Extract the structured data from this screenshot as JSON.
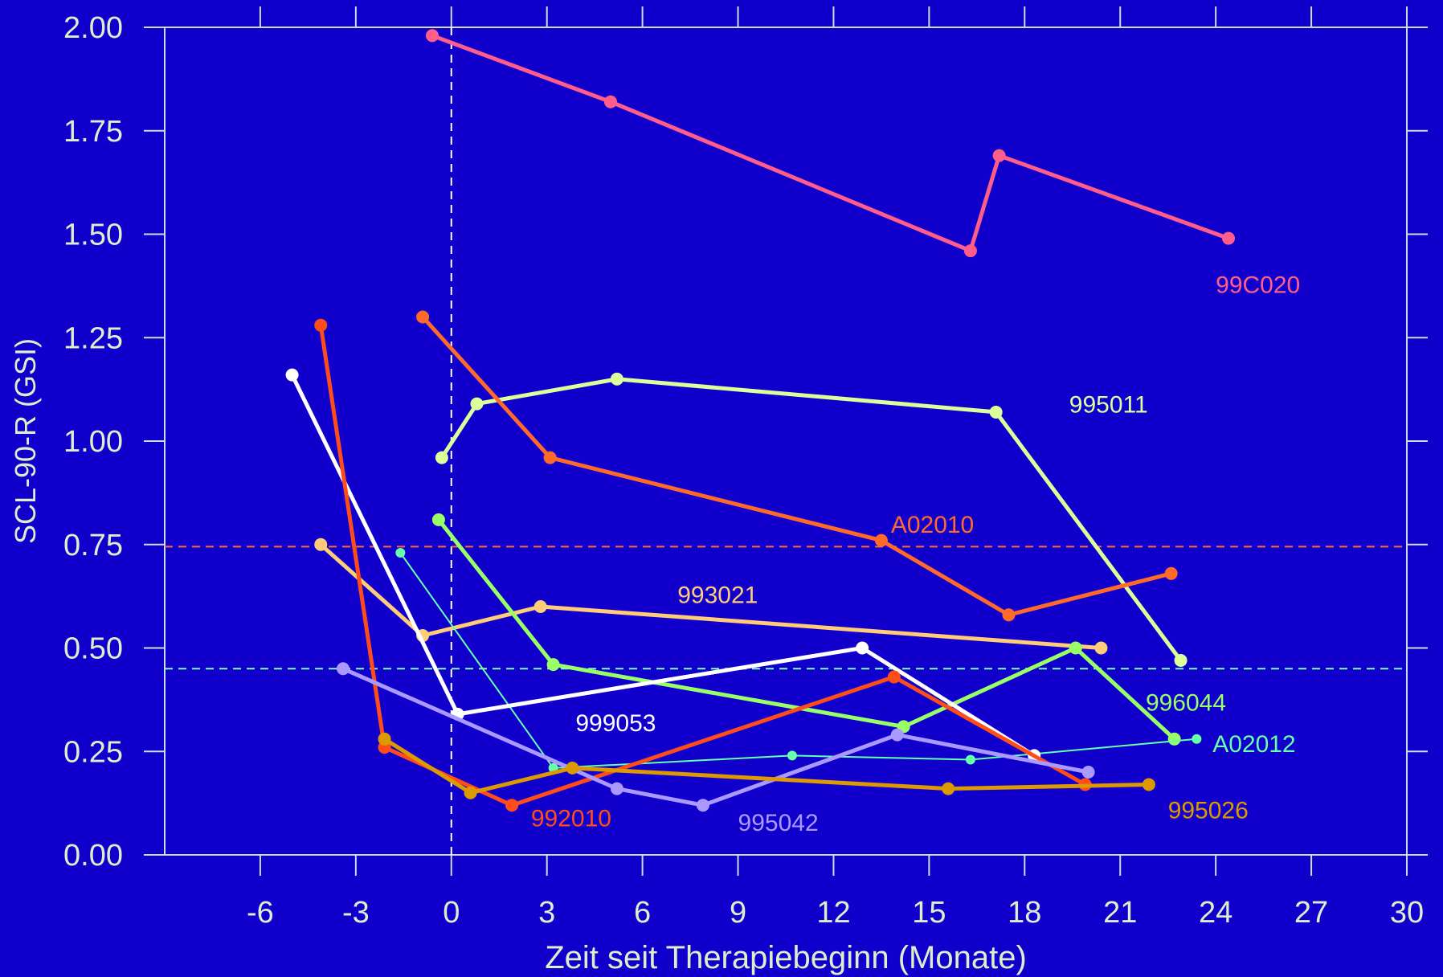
{
  "chart_data": {
    "type": "line",
    "xlabel": "Zeit seit Therapiebeginn (Monate)",
    "ylabel": "SCL-90-R (GSI)",
    "xlim": [
      -9,
      30
    ],
    "ylim": [
      0,
      2
    ],
    "xticks": [
      -6,
      -3,
      0,
      3,
      6,
      9,
      12,
      15,
      18,
      21,
      24,
      27,
      30
    ],
    "yticks": [
      0,
      0.25,
      0.5,
      0.75,
      1.0,
      1.25,
      1.5,
      1.75,
      2.0
    ],
    "xtick_labels": [
      "-6",
      "-3",
      "0",
      "3",
      "6",
      "9",
      "12",
      "15",
      "18",
      "21",
      "24",
      "27",
      "30"
    ],
    "ytick_labels": [
      "0.00",
      "0.25",
      "0.50",
      "0.75",
      "1.00",
      "1.25",
      "1.50",
      "1.75",
      "2.00"
    ],
    "reference_lines": [
      {
        "axis": "x",
        "value": 0,
        "color": "#ffffff",
        "style": "dashed"
      },
      {
        "axis": "y",
        "value": 0.745,
        "color": "#ff6a3d",
        "style": "dashed"
      },
      {
        "axis": "y",
        "value": 0.45,
        "color": "#80ffcc",
        "style": "dashed"
      }
    ],
    "grid": false,
    "background": "#1100cc",
    "series": [
      {
        "name": "99C020",
        "color": "#ff5e8a",
        "width": 5,
        "marker": 8,
        "x": [
          -0.6,
          5.0,
          16.3,
          17.2,
          24.4
        ],
        "y": [
          1.98,
          1.82,
          1.46,
          1.69,
          1.49
        ],
        "label_at": [
          24.0,
          1.38
        ]
      },
      {
        "name": "995011",
        "color": "#ddff99",
        "width": 5,
        "marker": 8,
        "x": [
          -0.3,
          0.8,
          5.2,
          17.1,
          22.9
        ],
        "y": [
          0.96,
          1.09,
          1.15,
          1.07,
          0.47
        ],
        "label_at": [
          19.4,
          1.09
        ]
      },
      {
        "name": "A02010",
        "color": "#ff6a2a",
        "width": 5,
        "marker": 8,
        "x": [
          -0.9,
          3.1,
          13.5,
          17.5,
          22.6
        ],
        "y": [
          1.3,
          0.96,
          0.76,
          0.58,
          0.68
        ],
        "label_at": [
          13.8,
          0.8
        ]
      },
      {
        "name": "993021",
        "color": "#ffcc77",
        "width": 5,
        "marker": 8,
        "x": [
          -4.1,
          -0.9,
          2.8,
          20.4
        ],
        "y": [
          0.75,
          0.53,
          0.6,
          0.5
        ],
        "label_at": [
          7.1,
          0.63
        ]
      },
      {
        "name": "996044",
        "color": "#99ff66",
        "width": 5,
        "marker": 8,
        "x": [
          -0.4,
          3.2,
          14.2,
          19.6,
          22.7
        ],
        "y": [
          0.81,
          0.46,
          0.31,
          0.5,
          0.28
        ],
        "label_at": [
          21.8,
          0.37
        ]
      },
      {
        "name": "A02012",
        "color": "#66ffaa",
        "width": 2,
        "marker": 6,
        "x": [
          -1.6,
          3.2,
          10.7,
          16.3,
          23.4
        ],
        "y": [
          0.73,
          0.21,
          0.24,
          0.23,
          0.28
        ],
        "label_at": [
          23.9,
          0.27
        ]
      },
      {
        "name": "999053",
        "color": "#ffffff",
        "width": 5,
        "marker": 8,
        "x": [
          -5.0,
          0.2,
          12.9,
          18.3
        ],
        "y": [
          1.16,
          0.34,
          0.5,
          0.24
        ],
        "label_at": [
          3.9,
          0.32
        ]
      },
      {
        "name": "992010",
        "color": "#ff4d1a",
        "width": 5,
        "marker": 8,
        "x": [
          -4.1,
          -2.1,
          1.9,
          13.9,
          19.9
        ],
        "y": [
          1.28,
          0.26,
          0.12,
          0.43,
          0.17
        ],
        "label_at": [
          2.5,
          0.09
        ]
      },
      {
        "name": "995042",
        "color": "#aa99ff",
        "width": 5,
        "marker": 8,
        "x": [
          -3.4,
          5.2,
          7.9,
          14.0,
          20.0
        ],
        "y": [
          0.45,
          0.16,
          0.12,
          0.29,
          0.2
        ],
        "label_at": [
          9.0,
          0.08
        ]
      },
      {
        "name": "995026",
        "color": "#dd9900",
        "width": 5,
        "marker": 8,
        "x": [
          -2.1,
          0.6,
          3.8,
          15.6,
          21.9
        ],
        "y": [
          0.28,
          0.15,
          0.21,
          0.16,
          0.17
        ],
        "label_at": [
          22.5,
          0.11
        ]
      }
    ]
  }
}
